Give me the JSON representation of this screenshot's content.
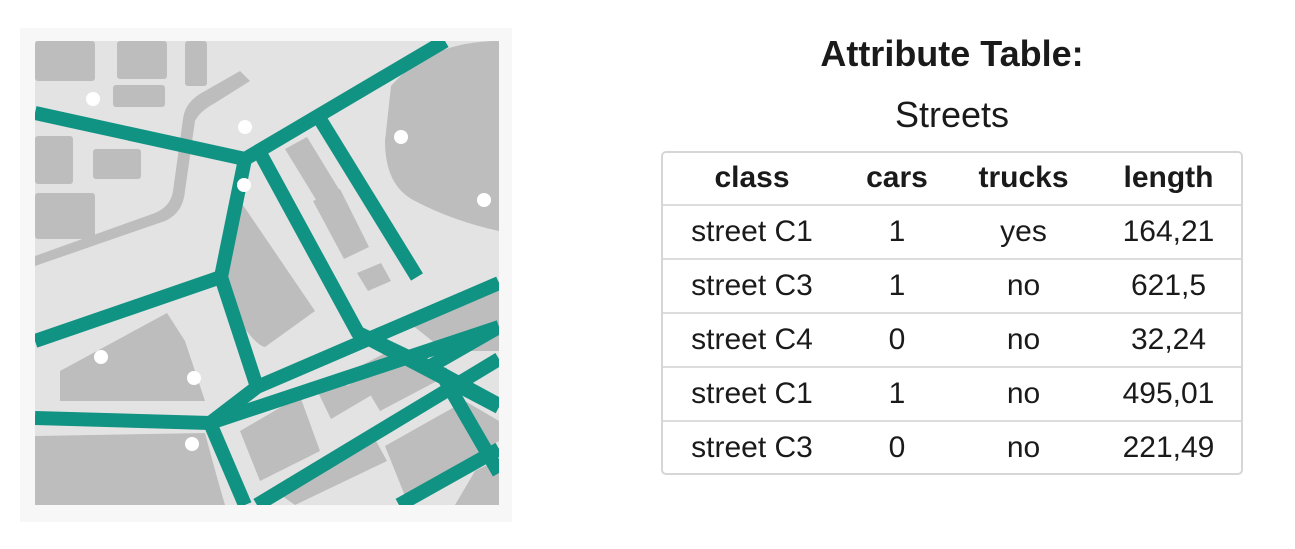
{
  "map": {
    "background_color": "#e3e3e3",
    "block_color": "#bdbdbd",
    "street_color": "#119383",
    "point_color": "#ffffff"
  },
  "table": {
    "title": "Attribute Table:",
    "subtitle": "Streets",
    "columns": [
      "class",
      "cars",
      "trucks",
      "length"
    ],
    "rows": [
      [
        "street C1",
        "1",
        "yes",
        "164,21"
      ],
      [
        "street C3",
        "1",
        "no",
        "621,5"
      ],
      [
        "street C4",
        "0",
        "no",
        "32,24"
      ],
      [
        "street C1",
        "1",
        "no",
        "495,01"
      ],
      [
        "street C3",
        "0",
        "no",
        "221,49"
      ]
    ]
  }
}
